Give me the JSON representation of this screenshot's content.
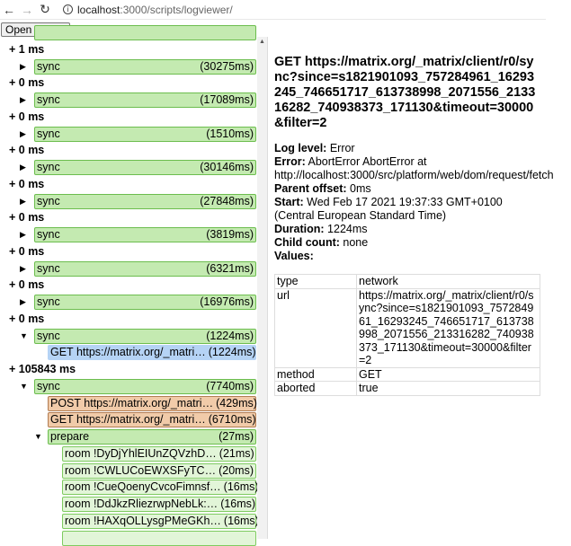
{
  "browser": {
    "url_host": "localhost",
    "url_rest": ":3000/scripts/logviewer/"
  },
  "toolbar": {
    "open_label": "Open log file"
  },
  "tree": [
    {
      "kind": "partial",
      "indent": 0,
      "type": "sync"
    },
    {
      "kind": "header",
      "text": "+ 1 ms"
    },
    {
      "kind": "item",
      "indent": 0,
      "toggle": "▶",
      "type": "sync",
      "label": "sync",
      "duration": "(30275ms)"
    },
    {
      "kind": "header",
      "text": "+ 0 ms"
    },
    {
      "kind": "item",
      "indent": 0,
      "toggle": "▶",
      "type": "sync",
      "label": "sync",
      "duration": "(17089ms)"
    },
    {
      "kind": "header",
      "text": "+ 0 ms"
    },
    {
      "kind": "item",
      "indent": 0,
      "toggle": "▶",
      "type": "sync",
      "label": "sync",
      "duration": "(1510ms)"
    },
    {
      "kind": "header",
      "text": "+ 0 ms"
    },
    {
      "kind": "item",
      "indent": 0,
      "toggle": "▶",
      "type": "sync",
      "label": "sync",
      "duration": "(30146ms)"
    },
    {
      "kind": "header",
      "text": "+ 0 ms"
    },
    {
      "kind": "item",
      "indent": 0,
      "toggle": "▶",
      "type": "sync",
      "label": "sync",
      "duration": "(27848ms)"
    },
    {
      "kind": "header",
      "text": "+ 0 ms"
    },
    {
      "kind": "item",
      "indent": 0,
      "toggle": "▶",
      "type": "sync",
      "label": "sync",
      "duration": "(3819ms)"
    },
    {
      "kind": "header",
      "text": "+ 0 ms"
    },
    {
      "kind": "item",
      "indent": 0,
      "toggle": "▶",
      "type": "sync",
      "label": "sync",
      "duration": "(6321ms)"
    },
    {
      "kind": "header",
      "text": "+ 0 ms"
    },
    {
      "kind": "item",
      "indent": 0,
      "toggle": "▶",
      "type": "sync",
      "label": "sync",
      "duration": "(16976ms)"
    },
    {
      "kind": "header",
      "text": "+ 0 ms"
    },
    {
      "kind": "item",
      "indent": 0,
      "toggle": "▼",
      "type": "sync",
      "label": "sync",
      "duration": "(1224ms)"
    },
    {
      "kind": "item",
      "indent": 1,
      "toggle": "",
      "type": "net",
      "label": "GET https://matrix.org/_matri…",
      "duration": "(1224ms)",
      "selected": true
    },
    {
      "kind": "header",
      "text": "+ 105843 ms"
    },
    {
      "kind": "item",
      "indent": 0,
      "toggle": "▼",
      "type": "sync",
      "label": "sync",
      "duration": "(7740ms)"
    },
    {
      "kind": "item",
      "indent": 1,
      "toggle": "",
      "type": "req",
      "label": "POST https://matrix.org/_matri…",
      "duration": "(429ms)"
    },
    {
      "kind": "item",
      "indent": 1,
      "toggle": "",
      "type": "req",
      "label": "GET https://matrix.org/_matri…",
      "duration": "(6710ms)"
    },
    {
      "kind": "item",
      "indent": 1,
      "toggle": "▼",
      "type": "sync",
      "label": "prepare",
      "duration": "(27ms)"
    },
    {
      "kind": "item",
      "indent": 2,
      "toggle": "",
      "type": "room",
      "label": "room !DyDjYhlEIUnZQVzhD…",
      "duration": "(21ms)"
    },
    {
      "kind": "item",
      "indent": 2,
      "toggle": "",
      "type": "room",
      "label": "room !CWLUCoEWXSFyTC…",
      "duration": "(20ms)"
    },
    {
      "kind": "item",
      "indent": 2,
      "toggle": "",
      "type": "room",
      "label": "room !CueQoenyCvcoFimnsf…",
      "duration": "(16ms)"
    },
    {
      "kind": "item",
      "indent": 2,
      "toggle": "",
      "type": "room",
      "label": "room !DdJkzRliezrwpNebLk:…",
      "duration": "(16ms)"
    },
    {
      "kind": "item",
      "indent": 2,
      "toggle": "",
      "type": "room",
      "label": "room !HAXqOLLysgPMeGKh…",
      "duration": "(16ms)"
    },
    {
      "kind": "partial",
      "indent": 2,
      "type": "room"
    }
  ],
  "detail": {
    "title": "GET https://matrix.org/_matrix/client/r0/sync?since=s1821901093_757284961_16293245_746651717_613738998_2071556_213316282_740938373_171130&timeout=30000&filter=2",
    "fields": [
      {
        "key": "Log level:",
        "value": " Error"
      },
      {
        "key": "Error:",
        "value": " AbortError AbortError at http://localhost:3000/src/platform/web/dom/request/fetch"
      },
      {
        "key": "Parent offset:",
        "value": " 0ms"
      },
      {
        "key": "Start:",
        "value": " Wed Feb 17 2021 19:37:33 GMT+0100 (Central European Standard Time)"
      },
      {
        "key": "Duration:",
        "value": " 1224ms"
      },
      {
        "key": "Child count:",
        "value": " none"
      },
      {
        "key": "Values:",
        "value": ""
      }
    ],
    "values": [
      {
        "k": "type",
        "v": "network"
      },
      {
        "k": "url",
        "v": "https://matrix.org/_matrix/client/r0/sync?since=s1821901093_757284961_16293245_746651717_613738998_2071556_213316282_740938373_171130&timeout=30000&filter=2"
      },
      {
        "k": "method",
        "v": "GET"
      },
      {
        "k": "aborted",
        "v": "true"
      }
    ]
  },
  "colors": {
    "sync": "#c4eab1",
    "network": "#b5d3f5",
    "request": "#f1cba9",
    "room": "#e2f5d8"
  }
}
